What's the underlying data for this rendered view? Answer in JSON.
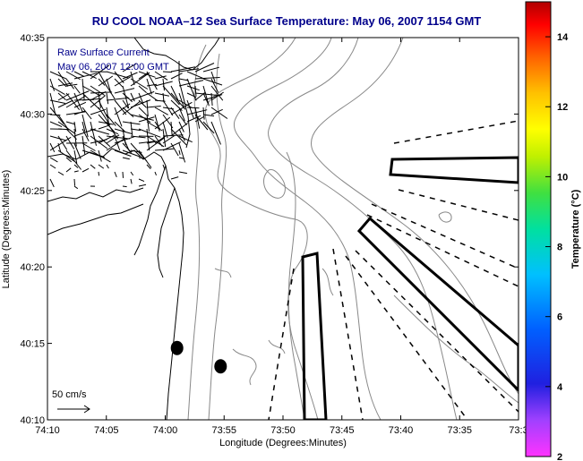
{
  "chart_data": {
    "type": "map",
    "title": "RU COOL  NOAA–12  Sea Surface Temperature:  May 06, 2007 1154 GMT",
    "xlabel": "Longitude (Degrees:Minutes)",
    "ylabel": "Latitude (Degrees:Minutes)",
    "x_ticks": [
      "74:10",
      "74:05",
      "74:00",
      "73:55",
      "73:50",
      "73:45",
      "73:40",
      "73:35",
      "73:3"
    ],
    "y_ticks": [
      "40:35",
      "40:30",
      "40:25",
      "40:20",
      "40:15",
      "40:10"
    ],
    "xlim": [
      -74.1667,
      -73.5
    ],
    "ylim": [
      40.1667,
      40.5833
    ],
    "annotations": {
      "line1": "Raw Surface Current",
      "line2": "May 06, 2007 12:00 GMT",
      "scale_label": "50 cm/s"
    },
    "colorbar": {
      "label": "Temperature (°C)",
      "range": [
        2,
        15
      ],
      "ticks": [
        "2",
        "4",
        "6",
        "8",
        "10",
        "12",
        "14"
      ],
      "tick_values": [
        2,
        4,
        6,
        8,
        10,
        12,
        14
      ]
    },
    "markers": [
      {
        "lon": -73.9833,
        "lat": 40.245
      },
      {
        "lon": -73.9217,
        "lat": 40.225
      }
    ],
    "colors": {
      "title": "#00008b",
      "annotation": "#00008b",
      "land_outline": "#000000",
      "bathymetry": "#888888",
      "boxes": "#000000"
    }
  }
}
